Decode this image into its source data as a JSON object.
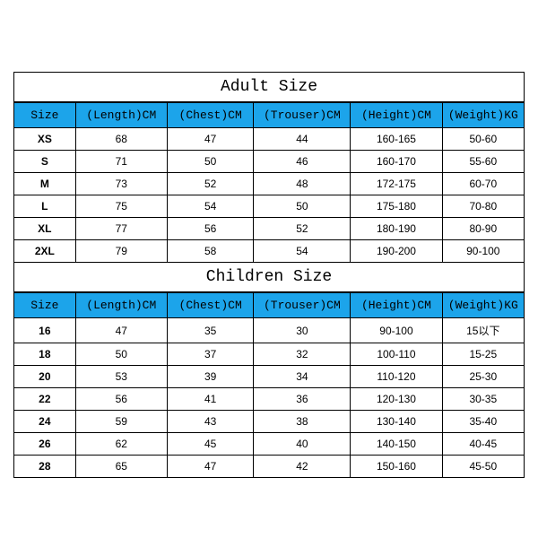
{
  "adult": {
    "title": "Adult Size",
    "columns": [
      "Size",
      "(Length)CM",
      "(Chest)CM",
      "(Trouser)CM",
      "(Height)CM",
      "(Weight)KG"
    ],
    "rows": [
      [
        "XS",
        "68",
        "47",
        "44",
        "160-165",
        "50-60"
      ],
      [
        "S",
        "71",
        "50",
        "46",
        "160-170",
        "55-60"
      ],
      [
        "M",
        "73",
        "52",
        "48",
        "172-175",
        "60-70"
      ],
      [
        "L",
        "75",
        "54",
        "50",
        "175-180",
        "70-80"
      ],
      [
        "XL",
        "77",
        "56",
        "52",
        "180-190",
        "80-90"
      ],
      [
        "2XL",
        "79",
        "58",
        "54",
        "190-200",
        "90-100"
      ]
    ]
  },
  "children": {
    "title": "Children Size",
    "columns": [
      "Size",
      "(Length)CM",
      "(Chest)CM",
      "(Trouser)CM",
      "(Height)CM",
      "(Weight)KG"
    ],
    "rows": [
      [
        "16",
        "47",
        "35",
        "30",
        "90-100",
        "15以下"
      ],
      [
        "18",
        "50",
        "37",
        "32",
        "100-110",
        "15-25"
      ],
      [
        "20",
        "53",
        "39",
        "34",
        "110-120",
        "25-30"
      ],
      [
        "22",
        "56",
        "41",
        "36",
        "120-130",
        "30-35"
      ],
      [
        "24",
        "59",
        "43",
        "38",
        "130-140",
        "35-40"
      ],
      [
        "26",
        "62",
        "45",
        "40",
        "140-150",
        "40-45"
      ],
      [
        "28",
        "65",
        "47",
        "42",
        "150-160",
        "45-50"
      ]
    ]
  },
  "styling": {
    "header_bg": "#1ca4ea",
    "border_color": "#000000",
    "bg_color": "#ffffff",
    "title_fontsize": 18,
    "header_fontsize": 13,
    "cell_fontsize": 12
  }
}
